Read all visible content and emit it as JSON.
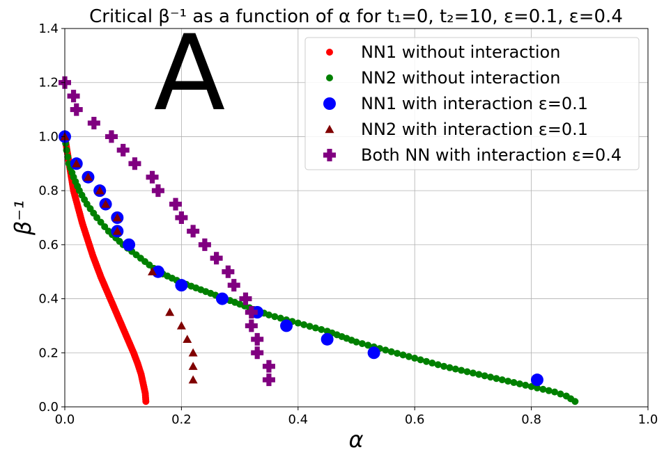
{
  "chart_data": {
    "type": "scatter",
    "title": "Critical β⁻¹ as a function of α for t₁=0, t₂=10, ε=0.1, ε=0.4",
    "xlabel": "α",
    "ylabel": "β⁻¹",
    "annotation": "A",
    "xlim": [
      0,
      1.0
    ],
    "ylim": [
      0,
      1.4
    ],
    "xticks": [
      "0.0",
      "0.2",
      "0.4",
      "0.6",
      "0.8",
      "1.0"
    ],
    "yticks": [
      "0.0",
      "0.2",
      "0.4",
      "0.6",
      "0.8",
      "1.0",
      "1.2",
      "1.4"
    ],
    "grid": true,
    "legend_position": "top-right",
    "series": [
      {
        "name": "NN1 without interaction",
        "marker": "small-dot",
        "color": "#ff0000",
        "points": [
          [
            0.0,
            1.0
          ],
          [
            0.003,
            0.96
          ],
          [
            0.006,
            0.92
          ],
          [
            0.009,
            0.88
          ],
          [
            0.012,
            0.84
          ],
          [
            0.015,
            0.8
          ],
          [
            0.02,
            0.76
          ],
          [
            0.025,
            0.72
          ],
          [
            0.03,
            0.68
          ],
          [
            0.036,
            0.64
          ],
          [
            0.042,
            0.6
          ],
          [
            0.048,
            0.56
          ],
          [
            0.055,
            0.52
          ],
          [
            0.062,
            0.48
          ],
          [
            0.07,
            0.44
          ],
          [
            0.078,
            0.4
          ],
          [
            0.086,
            0.36
          ],
          [
            0.094,
            0.32
          ],
          [
            0.102,
            0.28
          ],
          [
            0.11,
            0.24
          ],
          [
            0.118,
            0.2
          ],
          [
            0.125,
            0.16
          ],
          [
            0.131,
            0.12
          ],
          [
            0.135,
            0.08
          ],
          [
            0.138,
            0.05
          ],
          [
            0.139,
            0.02
          ]
        ]
      },
      {
        "name": "NN2 without interaction",
        "marker": "small-dot",
        "color": "#008000",
        "points": [
          [
            0.0,
            1.0
          ],
          [
            0.003,
            0.95
          ],
          [
            0.007,
            0.9
          ],
          [
            0.015,
            0.85
          ],
          [
            0.025,
            0.8
          ],
          [
            0.038,
            0.75
          ],
          [
            0.055,
            0.7
          ],
          [
            0.075,
            0.65
          ],
          [
            0.1,
            0.6
          ],
          [
            0.13,
            0.55
          ],
          [
            0.16,
            0.5
          ],
          [
            0.2,
            0.46
          ],
          [
            0.25,
            0.42
          ],
          [
            0.3,
            0.38
          ],
          [
            0.35,
            0.34
          ],
          [
            0.4,
            0.31
          ],
          [
            0.45,
            0.28
          ],
          [
            0.5,
            0.24
          ],
          [
            0.55,
            0.21
          ],
          [
            0.6,
            0.18
          ],
          [
            0.65,
            0.15
          ],
          [
            0.7,
            0.125
          ],
          [
            0.75,
            0.1
          ],
          [
            0.8,
            0.075
          ],
          [
            0.84,
            0.055
          ],
          [
            0.86,
            0.04
          ],
          [
            0.875,
            0.02
          ]
        ]
      },
      {
        "name": "NN1 with interaction ε=0.1",
        "marker": "large-circle",
        "color": "#0000ff",
        "points": [
          [
            0.0,
            1.0
          ],
          [
            0.02,
            0.9
          ],
          [
            0.04,
            0.85
          ],
          [
            0.06,
            0.8
          ],
          [
            0.07,
            0.75
          ],
          [
            0.09,
            0.7
          ],
          [
            0.09,
            0.65
          ],
          [
            0.11,
            0.6
          ],
          [
            0.16,
            0.5
          ],
          [
            0.2,
            0.45
          ],
          [
            0.27,
            0.4
          ],
          [
            0.33,
            0.35
          ],
          [
            0.38,
            0.3
          ],
          [
            0.45,
            0.25
          ],
          [
            0.53,
            0.2
          ],
          [
            0.81,
            0.1
          ]
        ]
      },
      {
        "name": "NN2 with interaction ε=0.1",
        "marker": "triangle",
        "color": "#800000",
        "points": [
          [
            0.0,
            1.0
          ],
          [
            0.02,
            0.9
          ],
          [
            0.04,
            0.85
          ],
          [
            0.06,
            0.8
          ],
          [
            0.07,
            0.75
          ],
          [
            0.09,
            0.7
          ],
          [
            0.09,
            0.65
          ],
          [
            0.15,
            0.5
          ],
          [
            0.18,
            0.35
          ],
          [
            0.2,
            0.3
          ],
          [
            0.21,
            0.25
          ],
          [
            0.22,
            0.2
          ],
          [
            0.22,
            0.15
          ],
          [
            0.22,
            0.1
          ]
        ]
      },
      {
        "name": "Both NN with interaction ε=0.4",
        "marker": "plus",
        "color": "#800080",
        "points": [
          [
            0.0,
            1.2
          ],
          [
            0.015,
            1.15
          ],
          [
            0.02,
            1.1
          ],
          [
            0.05,
            1.05
          ],
          [
            0.08,
            1.0
          ],
          [
            0.1,
            0.95
          ],
          [
            0.12,
            0.9
          ],
          [
            0.15,
            0.85
          ],
          [
            0.16,
            0.8
          ],
          [
            0.19,
            0.75
          ],
          [
            0.2,
            0.7
          ],
          [
            0.22,
            0.65
          ],
          [
            0.24,
            0.6
          ],
          [
            0.26,
            0.55
          ],
          [
            0.28,
            0.5
          ],
          [
            0.29,
            0.45
          ],
          [
            0.31,
            0.4
          ],
          [
            0.32,
            0.35
          ],
          [
            0.32,
            0.3
          ],
          [
            0.33,
            0.25
          ],
          [
            0.33,
            0.2
          ],
          [
            0.35,
            0.15
          ],
          [
            0.35,
            0.1
          ]
        ]
      }
    ]
  }
}
